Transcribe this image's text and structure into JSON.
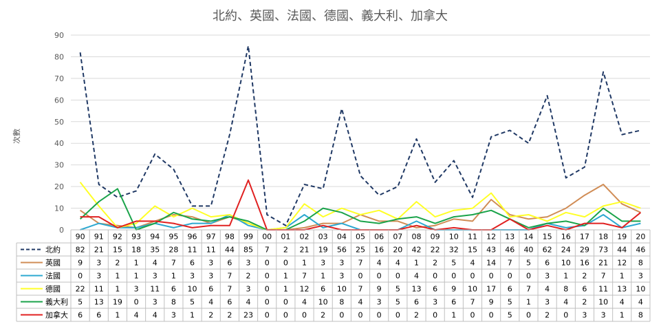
{
  "chart_data": {
    "type": "line",
    "title": "北約、英國、法國、德國、義大利、加拿大",
    "xlabel": "",
    "ylabel": "次數",
    "ylim": [
      0,
      90
    ],
    "yticks": [
      0,
      10,
      20,
      30,
      40,
      50,
      60,
      70,
      80,
      90
    ],
    "grid": true,
    "legend": "data-table",
    "categories": [
      "90",
      "91",
      "92",
      "93",
      "94",
      "95",
      "96",
      "97",
      "98",
      "99",
      "00",
      "01",
      "02",
      "03",
      "04",
      "05",
      "06",
      "07",
      "08",
      "09",
      "10",
      "11",
      "12",
      "13",
      "14",
      "15",
      "16",
      "17",
      "18",
      "19",
      "20"
    ],
    "series": [
      {
        "name": "北約",
        "color": "#1f3864",
        "dash": "dashed",
        "values": [
          82,
          21,
          15,
          18,
          35,
          28,
          11,
          11,
          44,
          85,
          7,
          2,
          21,
          19,
          56,
          25,
          16,
          20,
          42,
          22,
          32,
          15,
          43,
          46,
          40,
          62,
          24,
          29,
          73,
          44,
          46
        ]
      },
      {
        "name": "英國",
        "color": "#d08c55",
        "dash": "solid",
        "values": [
          9,
          3,
          2,
          1,
          4,
          7,
          6,
          3,
          6,
          3,
          0,
          0,
          1,
          3,
          3,
          7,
          4,
          4,
          1,
          2,
          5,
          4,
          14,
          7,
          5,
          6,
          10,
          16,
          21,
          12,
          8
        ]
      },
      {
        "name": "法國",
        "color": "#2ca8d0",
        "dash": "solid",
        "values": [
          0,
          3,
          1,
          1,
          3,
          1,
          3,
          3,
          7,
          2,
          0,
          1,
          7,
          1,
          3,
          0,
          0,
          0,
          4,
          0,
          0,
          0,
          0,
          0,
          0,
          3,
          1,
          2,
          7,
          1,
          3
        ]
      },
      {
        "name": "德國",
        "color": "#ffff26",
        "dash": "solid",
        "values": [
          22,
          11,
          1,
          3,
          11,
          6,
          10,
          6,
          7,
          3,
          0,
          1,
          12,
          6,
          10,
          7,
          9,
          5,
          13,
          6,
          9,
          10,
          17,
          6,
          7,
          4,
          8,
          6,
          11,
          13,
          10
        ]
      },
      {
        "name": "義大利",
        "color": "#1aa34a",
        "dash": "solid",
        "values": [
          5,
          13,
          19,
          0,
          3,
          8,
          5,
          4,
          6,
          4,
          0,
          0,
          4,
          10,
          8,
          4,
          3,
          5,
          6,
          3,
          6,
          7,
          9,
          5,
          1,
          3,
          4,
          2,
          10,
          4,
          4
        ]
      },
      {
        "name": "加拿大",
        "color": "#e02020",
        "dash": "solid",
        "values": [
          6,
          6,
          1,
          4,
          4,
          3,
          1,
          2,
          2,
          23,
          0,
          0,
          0,
          2,
          0,
          0,
          0,
          0,
          2,
          0,
          1,
          0,
          0,
          5,
          0,
          2,
          0,
          3,
          3,
          1,
          8
        ]
      }
    ]
  }
}
